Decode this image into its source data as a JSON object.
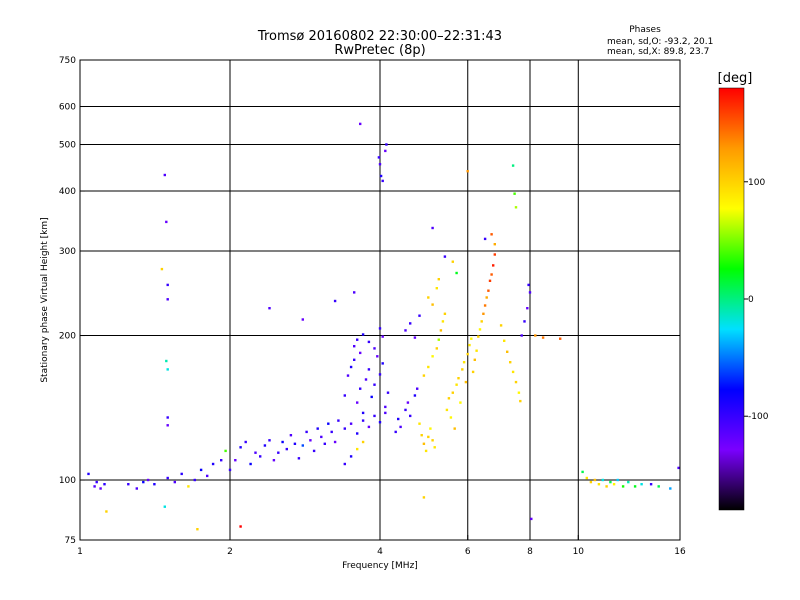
{
  "chart_data": {
    "type": "scatter",
    "title": "Tromsø 20160802 22:30:00–22:31:43",
    "subtitle": "RwPretec (8p)",
    "xlabel": "Frequency [MHz]",
    "ylabel": "Stationary phase Virtual Height [km]",
    "x_scale": "log",
    "y_scale": "log",
    "xlim": [
      1,
      16
    ],
    "ylim": [
      75,
      750
    ],
    "x_ticks": [
      1,
      2,
      4,
      6,
      8,
      10,
      16
    ],
    "y_ticks": [
      75,
      100,
      200,
      300,
      400,
      500,
      600,
      750
    ],
    "grid_x": [
      2,
      4,
      6,
      8,
      10
    ],
    "grid_y": [
      100,
      200,
      300,
      400,
      500,
      600
    ],
    "stats": {
      "header": "Phases",
      "line_o": "mean, sd,O: -93.2, 20.1",
      "line_x": "mean, sd,X:  89.8, 23.7"
    },
    "colorbar": {
      "label": "[deg]",
      "range": [
        -180,
        180
      ],
      "ticks": [
        100,
        0,
        -100
      ],
      "colors": [
        "#000000",
        "#7a00ff",
        "#0000ff",
        "#00e0ff",
        "#00ff00",
        "#ffff00",
        "#ff9a00",
        "#ff0000"
      ]
    },
    "points": [
      [
        1.07,
        97,
        -110
      ],
      [
        1.08,
        99,
        -100
      ],
      [
        1.1,
        96,
        -120
      ],
      [
        1.12,
        98,
        -95
      ],
      [
        1.04,
        103,
        -90
      ],
      [
        1.13,
        86,
        100
      ],
      [
        1.25,
        98,
        -100
      ],
      [
        1.3,
        96,
        -110
      ],
      [
        1.34,
        99,
        -80
      ],
      [
        1.37,
        100,
        -120
      ],
      [
        1.41,
        98,
        -90
      ],
      [
        1.5,
        101,
        -100
      ],
      [
        1.55,
        99,
        -110
      ],
      [
        1.6,
        103,
        -95
      ],
      [
        1.65,
        97,
        90
      ],
      [
        1.7,
        100,
        -100
      ],
      [
        1.75,
        105,
        -80
      ],
      [
        1.8,
        102,
        -110
      ],
      [
        1.85,
        108,
        -90
      ],
      [
        1.92,
        110,
        -100
      ],
      [
        1.48,
        432,
        -110
      ],
      [
        1.49,
        345,
        -120
      ],
      [
        1.5,
        255,
        -100
      ],
      [
        1.5,
        238,
        -110
      ],
      [
        1.46,
        275,
        100
      ],
      [
        1.49,
        177,
        -10
      ],
      [
        1.5,
        170,
        -20
      ],
      [
        1.5,
        135,
        -100
      ],
      [
        1.5,
        130,
        -120
      ],
      [
        1.48,
        88,
        -20
      ],
      [
        1.72,
        79,
        100
      ],
      [
        2.1,
        80,
        180
      ],
      [
        1.96,
        115,
        40
      ],
      [
        2.0,
        105,
        -100
      ],
      [
        2.05,
        110,
        -120
      ],
      [
        2.1,
        117,
        -90
      ],
      [
        2.15,
        120,
        -100
      ],
      [
        2.2,
        108,
        -80
      ],
      [
        2.25,
        114,
        -110
      ],
      [
        2.3,
        112,
        -100
      ],
      [
        2.35,
        118,
        -90
      ],
      [
        2.4,
        121,
        -100
      ],
      [
        2.45,
        110,
        -120
      ],
      [
        2.5,
        114,
        -100
      ],
      [
        2.55,
        120,
        -80
      ],
      [
        2.6,
        116,
        -100
      ],
      [
        2.65,
        124,
        -110
      ],
      [
        2.7,
        119,
        -90
      ],
      [
        2.75,
        111,
        -100
      ],
      [
        2.8,
        118,
        -60
      ],
      [
        2.85,
        126,
        -100
      ],
      [
        2.9,
        121,
        -120
      ],
      [
        2.95,
        115,
        -100
      ],
      [
        3.0,
        128,
        -90
      ],
      [
        3.05,
        123,
        -110
      ],
      [
        3.1,
        119,
        -100
      ],
      [
        3.15,
        131,
        -80
      ],
      [
        3.2,
        126,
        -100
      ],
      [
        3.25,
        120,
        -120
      ],
      [
        3.3,
        133,
        -100
      ],
      [
        2.4,
        228,
        -110
      ],
      [
        2.8,
        216,
        -120
      ],
      [
        3.25,
        236,
        -100
      ],
      [
        3.55,
        246,
        -110
      ],
      [
        3.4,
        150,
        -100
      ],
      [
        3.45,
        165,
        -110
      ],
      [
        3.5,
        172,
        -90
      ],
      [
        3.55,
        178,
        -100
      ],
      [
        3.6,
        145,
        -120
      ],
      [
        3.65,
        155,
        -100
      ],
      [
        3.7,
        138,
        -90
      ],
      [
        3.75,
        162,
        -110
      ],
      [
        3.8,
        170,
        -100
      ],
      [
        3.85,
        149,
        -80
      ],
      [
        3.9,
        158,
        -100
      ],
      [
        3.95,
        181,
        -120
      ],
      [
        4.0,
        166,
        -100
      ],
      [
        4.05,
        175,
        -90
      ],
      [
        4.1,
        142,
        -110
      ],
      [
        4.15,
        152,
        -100
      ],
      [
        3.55,
        190,
        -110
      ],
      [
        3.6,
        196,
        -100
      ],
      [
        3.65,
        184,
        -120
      ],
      [
        3.7,
        201,
        -90
      ],
      [
        3.8,
        194,
        -100
      ],
      [
        3.9,
        188,
        -110
      ],
      [
        4.0,
        207,
        -100
      ],
      [
        4.05,
        199,
        -120
      ],
      [
        3.4,
        128,
        -100
      ],
      [
        3.5,
        131,
        -110
      ],
      [
        3.6,
        125,
        -90
      ],
      [
        3.7,
        133,
        -100
      ],
      [
        3.8,
        129,
        -120
      ],
      [
        3.9,
        136,
        -100
      ],
      [
        4.0,
        132,
        -90
      ],
      [
        4.1,
        138,
        -110
      ],
      [
        3.4,
        108,
        -100
      ],
      [
        3.5,
        112,
        -90
      ],
      [
        3.6,
        116,
        90
      ],
      [
        3.7,
        120,
        100
      ],
      [
        3.65,
        552,
        -120
      ],
      [
        3.98,
        470,
        -100
      ],
      [
        4.0,
        455,
        -110
      ],
      [
        4.02,
        430,
        -90
      ],
      [
        4.05,
        420,
        -100
      ],
      [
        4.1,
        485,
        -120
      ],
      [
        4.12,
        500,
        -100
      ],
      [
        4.3,
        126,
        -100
      ],
      [
        4.35,
        134,
        -90
      ],
      [
        4.4,
        129,
        -110
      ],
      [
        4.5,
        140,
        -100
      ],
      [
        4.55,
        145,
        -120
      ],
      [
        4.6,
        136,
        -100
      ],
      [
        4.7,
        150,
        -90
      ],
      [
        4.75,
        155,
        -110
      ],
      [
        4.8,
        131,
        90
      ],
      [
        4.85,
        124,
        100
      ],
      [
        4.9,
        119,
        110
      ],
      [
        4.95,
        115,
        90
      ],
      [
        5.0,
        123,
        100
      ],
      [
        5.05,
        128,
        80
      ],
      [
        5.1,
        121,
        100
      ],
      [
        5.15,
        117,
        90
      ],
      [
        4.9,
        165,
        100
      ],
      [
        5.0,
        172,
        90
      ],
      [
        5.1,
        181,
        80
      ],
      [
        5.2,
        188,
        100
      ],
      [
        5.25,
        196,
        60
      ],
      [
        5.3,
        205,
        110
      ],
      [
        5.35,
        214,
        90
      ],
      [
        5.4,
        222,
        100
      ],
      [
        4.5,
        205,
        -110
      ],
      [
        4.6,
        212,
        -100
      ],
      [
        4.7,
        198,
        -120
      ],
      [
        4.8,
        220,
        -100
      ],
      [
        5.0,
        240,
        100
      ],
      [
        5.1,
        232,
        110
      ],
      [
        5.2,
        251,
        90
      ],
      [
        5.25,
        262,
        100
      ],
      [
        5.1,
        335,
        -110
      ],
      [
        5.4,
        292,
        -100
      ],
      [
        5.6,
        285,
        100
      ],
      [
        5.7,
        270,
        20
      ],
      [
        5.45,
        140,
        90
      ],
      [
        5.5,
        148,
        100
      ],
      [
        5.55,
        135,
        80
      ],
      [
        5.6,
        152,
        100
      ],
      [
        5.65,
        128,
        110
      ],
      [
        5.7,
        158,
        90
      ],
      [
        5.75,
        163,
        100
      ],
      [
        5.8,
        145,
        80
      ],
      [
        5.85,
        170,
        100
      ],
      [
        5.9,
        176,
        90
      ],
      [
        5.95,
        160,
        110
      ],
      [
        6.0,
        183,
        100
      ],
      [
        6.05,
        191,
        90
      ],
      [
        6.1,
        197,
        80
      ],
      [
        6.15,
        168,
        100
      ],
      [
        6.2,
        178,
        110
      ],
      [
        6.25,
        186,
        90
      ],
      [
        6.3,
        199,
        100
      ],
      [
        6.35,
        206,
        80
      ],
      [
        6.4,
        214,
        100
      ],
      [
        6.45,
        222,
        130
      ],
      [
        6.5,
        231,
        140
      ],
      [
        6.55,
        240,
        120
      ],
      [
        6.6,
        248,
        150
      ],
      [
        6.65,
        260,
        160
      ],
      [
        6.7,
        268,
        150
      ],
      [
        6.75,
        280,
        170
      ],
      [
        6.8,
        295,
        160
      ],
      [
        6.0,
        440,
        130
      ],
      [
        6.5,
        318,
        -100
      ],
      [
        6.7,
        325,
        150
      ],
      [
        6.8,
        310,
        120
      ],
      [
        7.4,
        452,
        0
      ],
      [
        7.45,
        395,
        40
      ],
      [
        7.5,
        370,
        60
      ],
      [
        7.0,
        210,
        100
      ],
      [
        7.1,
        195,
        90
      ],
      [
        7.2,
        185,
        110
      ],
      [
        7.3,
        176,
        100
      ],
      [
        7.4,
        168,
        90
      ],
      [
        7.5,
        160,
        100
      ],
      [
        7.6,
        152,
        80
      ],
      [
        7.65,
        146,
        100
      ],
      [
        7.7,
        200,
        -110
      ],
      [
        7.8,
        214,
        -100
      ],
      [
        7.9,
        228,
        -120
      ],
      [
        7.95,
        255,
        -100
      ],
      [
        8.0,
        246,
        -110
      ],
      [
        8.05,
        83,
        -120
      ],
      [
        8.2,
        200,
        130
      ],
      [
        8.5,
        198,
        140
      ],
      [
        9.2,
        197,
        150
      ],
      [
        10.2,
        104,
        10
      ],
      [
        10.4,
        101,
        90
      ],
      [
        10.6,
        99,
        100
      ],
      [
        10.8,
        100,
        110
      ],
      [
        11.0,
        98,
        90
      ],
      [
        11.2,
        100,
        -20
      ],
      [
        11.4,
        97,
        100
      ],
      [
        11.6,
        99,
        10
      ],
      [
        11.8,
        98,
        80
      ],
      [
        12.0,
        100,
        -30
      ],
      [
        12.3,
        97,
        30
      ],
      [
        12.6,
        99,
        -10
      ],
      [
        13.0,
        97,
        20
      ],
      [
        13.4,
        98,
        -20
      ],
      [
        14.0,
        98,
        -100
      ],
      [
        14.5,
        97,
        10
      ],
      [
        15.3,
        96,
        -40
      ],
      [
        15.9,
        106,
        -110
      ],
      [
        4.9,
        92,
        100
      ]
    ]
  }
}
